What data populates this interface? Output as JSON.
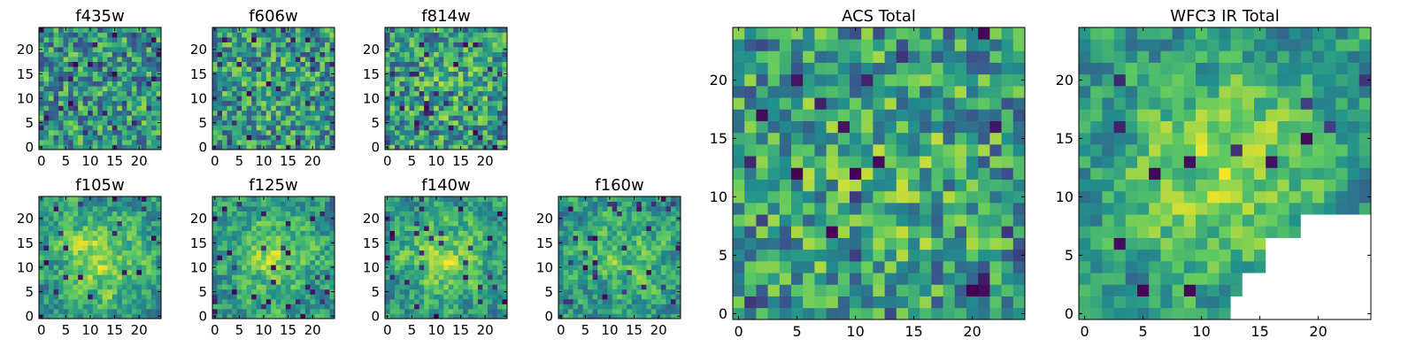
{
  "chart_data": [
    {
      "type": "heatmap",
      "title": "f435w",
      "xticks": [
        "0",
        "5",
        "10",
        "15",
        "20"
      ],
      "yticks": [
        "0",
        "5",
        "10",
        "15",
        "20"
      ],
      "size": 25,
      "seed": 11,
      "smooth": 0,
      "center": 0.0,
      "dark_frac": 0.06,
      "xlim": [
        0,
        24
      ],
      "ylim": [
        0,
        24
      ]
    },
    {
      "type": "heatmap",
      "title": "f606w",
      "xticks": [
        "0",
        "5",
        "10",
        "15",
        "20"
      ],
      "yticks": [
        "0",
        "5",
        "10",
        "15",
        "20"
      ],
      "size": 25,
      "seed": 23,
      "smooth": 0,
      "center": 0.05,
      "dark_frac": 0.05,
      "xlim": [
        0,
        24
      ],
      "ylim": [
        0,
        24
      ]
    },
    {
      "type": "heatmap",
      "title": "f814w",
      "xticks": [
        "0",
        "5",
        "10",
        "15",
        "20"
      ],
      "yticks": [
        "0",
        "5",
        "10",
        "15",
        "20"
      ],
      "size": 25,
      "seed": 37,
      "smooth": 0,
      "center": 0.1,
      "dark_frac": 0.05,
      "xlim": [
        0,
        24
      ],
      "ylim": [
        0,
        24
      ]
    },
    {
      "type": "heatmap",
      "title": "f105w",
      "xticks": [
        "0",
        "5",
        "10",
        "15",
        "20"
      ],
      "yticks": [
        "0",
        "5",
        "10",
        "15",
        "20"
      ],
      "size": 25,
      "seed": 41,
      "smooth": 1,
      "center": 0.35,
      "dark_frac": 0.04,
      "xlim": [
        0,
        24
      ],
      "ylim": [
        0,
        24
      ]
    },
    {
      "type": "heatmap",
      "title": "f125w",
      "xticks": [
        "0",
        "5",
        "10",
        "15",
        "20"
      ],
      "yticks": [
        "0",
        "5",
        "10",
        "15",
        "20"
      ],
      "size": 25,
      "seed": 53,
      "smooth": 1,
      "center": 0.3,
      "dark_frac": 0.04,
      "xlim": [
        0,
        24
      ],
      "ylim": [
        0,
        24
      ]
    },
    {
      "type": "heatmap",
      "title": "f140w",
      "xticks": [
        "0",
        "5",
        "10",
        "15",
        "20"
      ],
      "yticks": [
        "0",
        "5",
        "10",
        "15",
        "20"
      ],
      "size": 25,
      "seed": 67,
      "smooth": 1,
      "center": 0.3,
      "dark_frac": 0.04,
      "xlim": [
        0,
        24
      ],
      "ylim": [
        0,
        24
      ]
    },
    {
      "type": "heatmap",
      "title": "f160w",
      "xticks": [
        "0",
        "5",
        "10",
        "15",
        "20"
      ],
      "yticks": [
        "0",
        "5",
        "10",
        "15",
        "20"
      ],
      "size": 25,
      "seed": 79,
      "smooth": 1,
      "center": 0.2,
      "dark_frac": 0.05,
      "xlim": [
        0,
        24
      ],
      "ylim": [
        0,
        24
      ]
    },
    {
      "type": "heatmap",
      "title": "ACS Total",
      "xticks": [
        "0",
        "5",
        "10",
        "15",
        "20"
      ],
      "yticks": [
        "0",
        "5",
        "10",
        "15",
        "20"
      ],
      "size": 25,
      "seed": 97,
      "smooth": 0,
      "center": 0.15,
      "dark_frac": 0.04,
      "xlim": [
        0,
        24
      ],
      "ylim": [
        0,
        24
      ]
    },
    {
      "type": "heatmap",
      "title": "WFC3 IR Total",
      "xticks": [
        "0",
        "5",
        "10",
        "15",
        "20"
      ],
      "yticks": [
        "0",
        "5",
        "10",
        "15",
        "20"
      ],
      "size": 25,
      "seed": 113,
      "smooth": 1,
      "center": 0.35,
      "dark_frac": 0.03,
      "xlim": [
        0,
        24
      ],
      "ylim": [
        0,
        24
      ],
      "masked_corner": "bottom-right"
    }
  ],
  "colors": {
    "colormap": "viridis",
    "colormap_stops": [
      "#440154",
      "#3b528b",
      "#21918c",
      "#5ec962",
      "#fde725"
    ],
    "spine": "#000000",
    "masked": "#ffffff"
  }
}
